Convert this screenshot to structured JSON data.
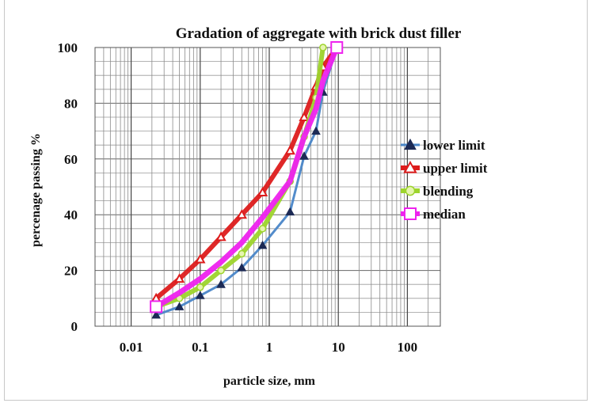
{
  "chart_data": {
    "type": "line",
    "title": "Gradation of aggregate with brick dust filler",
    "xlabel": "particle size, mm",
    "ylabel": "percenage passing %",
    "x_scale": "log",
    "xlim": [
      0.003,
      300
    ],
    "ylim": [
      0,
      100
    ],
    "x_ticks": [
      0.01,
      0.1,
      1,
      10,
      100
    ],
    "x_tick_labels": [
      "0.01",
      "0.1",
      "1",
      "10",
      "100"
    ],
    "y_ticks": [
      0,
      20,
      40,
      60,
      80,
      100
    ],
    "y_tick_labels": [
      "0",
      "20",
      "40",
      "60",
      "80",
      "100"
    ],
    "grid": true,
    "legend_position": "right",
    "series": [
      {
        "name": "lower limit",
        "color": "#4a86c8",
        "marker": "triangle",
        "x": [
          0.023,
          0.05,
          0.1,
          0.2,
          0.4,
          0.8,
          2.0,
          3.2,
          4.75,
          6.0,
          9.5
        ],
        "y": [
          4,
          7,
          11,
          15,
          21,
          29,
          41,
          61,
          70,
          84,
          100
        ]
      },
      {
        "name": "upper limit",
        "color": "#dd1c1c",
        "marker": "open-triangle",
        "x": [
          0.023,
          0.05,
          0.1,
          0.2,
          0.4,
          0.8,
          2.0,
          3.2,
          4.75,
          6.0,
          9.5
        ],
        "y": [
          10,
          17,
          24,
          32,
          40,
          48,
          63,
          75,
          86,
          93,
          100
        ]
      },
      {
        "name": "blending",
        "color": "#9dd42c",
        "marker": "circle",
        "x": [
          0.023,
          0.05,
          0.1,
          0.2,
          0.4,
          0.8,
          2.0,
          3.2,
          4.75,
          6.0
        ],
        "y": [
          7,
          10,
          14,
          20,
          26,
          35,
          52,
          68,
          82,
          100
        ]
      },
      {
        "name": "median",
        "color": "#ee22ee",
        "marker": "open-square",
        "x": [
          0.023,
          0.05,
          0.1,
          0.2,
          0.4,
          0.8,
          2.0,
          3.2,
          4.75,
          6.0,
          9.5
        ],
        "y": [
          7,
          12,
          17,
          23,
          30,
          39,
          52,
          68,
          78,
          88,
          100
        ]
      }
    ]
  }
}
